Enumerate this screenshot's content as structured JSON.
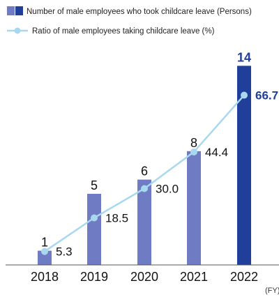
{
  "colors": {
    "bar": "#6f7cc4",
    "bar_highlight": "#1f3f9a",
    "line": "#a8d8f0",
    "marker": "#a8d8f0",
    "axis": "#555555",
    "highlight_text": "#1f3f9a"
  },
  "chart_data": {
    "type": "bar",
    "categories": [
      "2018",
      "2019",
      "2020",
      "2021",
      "2022"
    ],
    "highlight_index": 4,
    "series": [
      {
        "name": "Number of male employees who took childcare leave (Persons)",
        "kind": "bar",
        "values": [
          1,
          5,
          6,
          8,
          14
        ],
        "labels": [
          "1",
          "5",
          "6",
          "8",
          "14"
        ]
      },
      {
        "name": "Ratio of male employees taking childcare leave (%)",
        "kind": "line",
        "values": [
          5.3,
          18.5,
          30.0,
          44.4,
          66.7
        ],
        "labels": [
          "5.3",
          "18.5",
          "30.0",
          "44.4",
          "66.7"
        ]
      }
    ],
    "xlabel": "",
    "ylabel": "",
    "unit_note": "(FY)",
    "legend": "top-left",
    "grid": false,
    "y_axis_visible": false
  }
}
